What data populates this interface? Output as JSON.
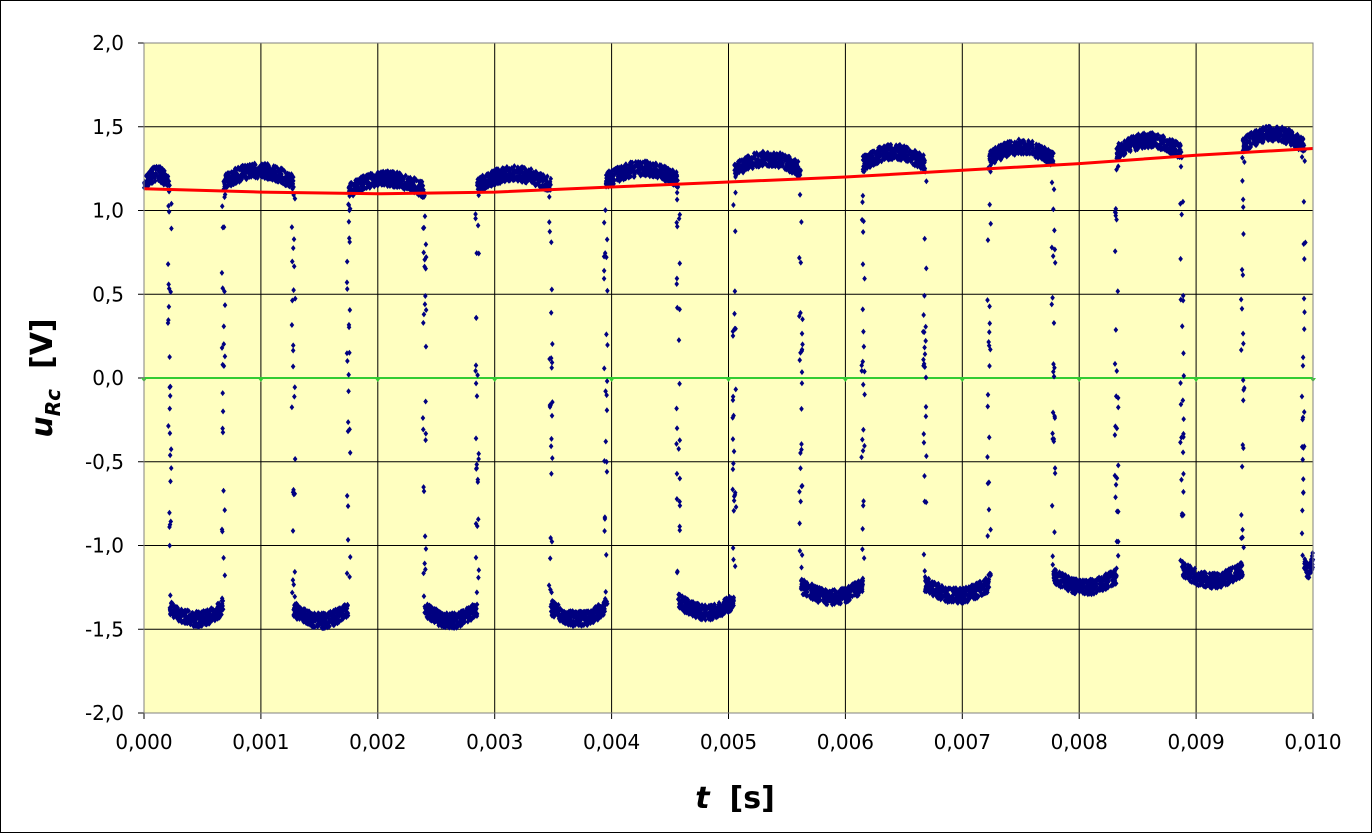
{
  "chart_data": {
    "type": "scatter",
    "title": "",
    "xlabel": {
      "symbol": "t",
      "unit": "[s]"
    },
    "ylabel": {
      "symbol": "u",
      "subscript": "Rc",
      "unit": "[V]"
    },
    "xlim": [
      0,
      0.01
    ],
    "ylim": [
      -2.0,
      2.0
    ],
    "x_ticks": [
      "0,000",
      "0,001",
      "0,002",
      "0,003",
      "0,004",
      "0,005",
      "0,006",
      "0,007",
      "0,008",
      "0,009",
      "0,010"
    ],
    "y_ticks": [
      "2,0",
      "1,5",
      "1,0",
      "0,5",
      "0,0",
      "-0,5",
      "-1,0",
      "-1,5",
      "-2,0"
    ],
    "grid": true,
    "legend": "none",
    "plot_background": "#ffffc0",
    "series": [
      {
        "kind": "scatter",
        "color": "#000080",
        "marker": "diamond",
        "signal": "square-wave",
        "period": 0.0011,
        "first_segment": "high",
        "segments": [
          {
            "t_start": 0.0,
            "t_end": 0.00022,
            "level": 1.15
          },
          {
            "t_start": 0.00022,
            "t_end": 0.00068,
            "level": -1.37
          },
          {
            "t_start": 0.00068,
            "t_end": 0.00128,
            "level": 1.17
          },
          {
            "t_start": 0.00128,
            "t_end": 0.00175,
            "level": -1.38
          },
          {
            "t_start": 0.00175,
            "t_end": 0.0024,
            "level": 1.12
          },
          {
            "t_start": 0.0024,
            "t_end": 0.00285,
            "level": -1.38
          },
          {
            "t_start": 0.00285,
            "t_end": 0.00348,
            "level": 1.15
          },
          {
            "t_start": 0.00348,
            "t_end": 0.00395,
            "level": -1.37
          },
          {
            "t_start": 0.00395,
            "t_end": 0.00457,
            "level": 1.18
          },
          {
            "t_start": 0.00457,
            "t_end": 0.00505,
            "level": -1.33
          },
          {
            "t_start": 0.00505,
            "t_end": 0.00562,
            "level": 1.24
          },
          {
            "t_start": 0.00562,
            "t_end": 0.00615,
            "level": -1.24
          },
          {
            "t_start": 0.00615,
            "t_end": 0.00668,
            "level": 1.28
          },
          {
            "t_start": 0.00668,
            "t_end": 0.00723,
            "level": -1.23
          },
          {
            "t_start": 0.00723,
            "t_end": 0.00778,
            "level": 1.31
          },
          {
            "t_start": 0.00778,
            "t_end": 0.00832,
            "level": -1.18
          },
          {
            "t_start": 0.00832,
            "t_end": 0.00888,
            "level": 1.35
          },
          {
            "t_start": 0.00888,
            "t_end": 0.0094,
            "level": -1.14
          },
          {
            "t_start": 0.0094,
            "t_end": 0.00992,
            "level": 1.39
          },
          {
            "t_start": 0.00992,
            "t_end": 0.01,
            "level": -1.08
          }
        ]
      },
      {
        "kind": "line",
        "color": "#ff0000",
        "x": [
          0.0,
          0.001,
          0.002,
          0.003,
          0.004,
          0.005,
          0.006,
          0.007,
          0.008,
          0.009,
          0.01
        ],
        "y": [
          1.13,
          1.11,
          1.1,
          1.11,
          1.14,
          1.17,
          1.2,
          1.24,
          1.28,
          1.33,
          1.37
        ]
      },
      {
        "kind": "line",
        "color": "#33cc33",
        "x": [
          0.0,
          0.001,
          0.002,
          0.003,
          0.004,
          0.005,
          0.006,
          0.007,
          0.008,
          0.009,
          0.01
        ],
        "y": [
          0,
          0,
          0,
          0,
          0,
          0,
          0,
          0,
          0,
          0,
          0
        ]
      }
    ]
  }
}
